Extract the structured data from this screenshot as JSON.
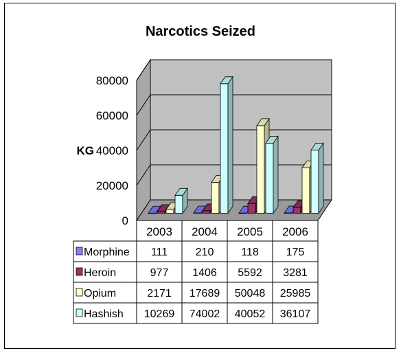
{
  "chart_data": {
    "type": "bar",
    "title": "Narcotics Seized",
    "xlabel": "",
    "ylabel": "KG",
    "ylim": [
      0,
      80000
    ],
    "yticks": [
      0,
      20000,
      40000,
      60000,
      80000
    ],
    "categories": [
      "2003",
      "2004",
      "2005",
      "2006"
    ],
    "series": [
      {
        "name": "Morphine",
        "values": [
          111,
          210,
          118,
          175
        ],
        "color": "#8080ff"
      },
      {
        "name": "Heroin",
        "values": [
          977,
          1406,
          5592,
          3281
        ],
        "color": "#993366"
      },
      {
        "name": "Opium",
        "values": [
          2171,
          17689,
          50048,
          25985
        ],
        "color": "#ffffcc"
      },
      {
        "name": "Hashish",
        "values": [
          10269,
          74002,
          40052,
          36107
        ],
        "color": "#ccffff"
      }
    ],
    "grid": true,
    "legend": "data-table",
    "style": "3d-clustered",
    "wall_color": "#c0c0c0"
  }
}
